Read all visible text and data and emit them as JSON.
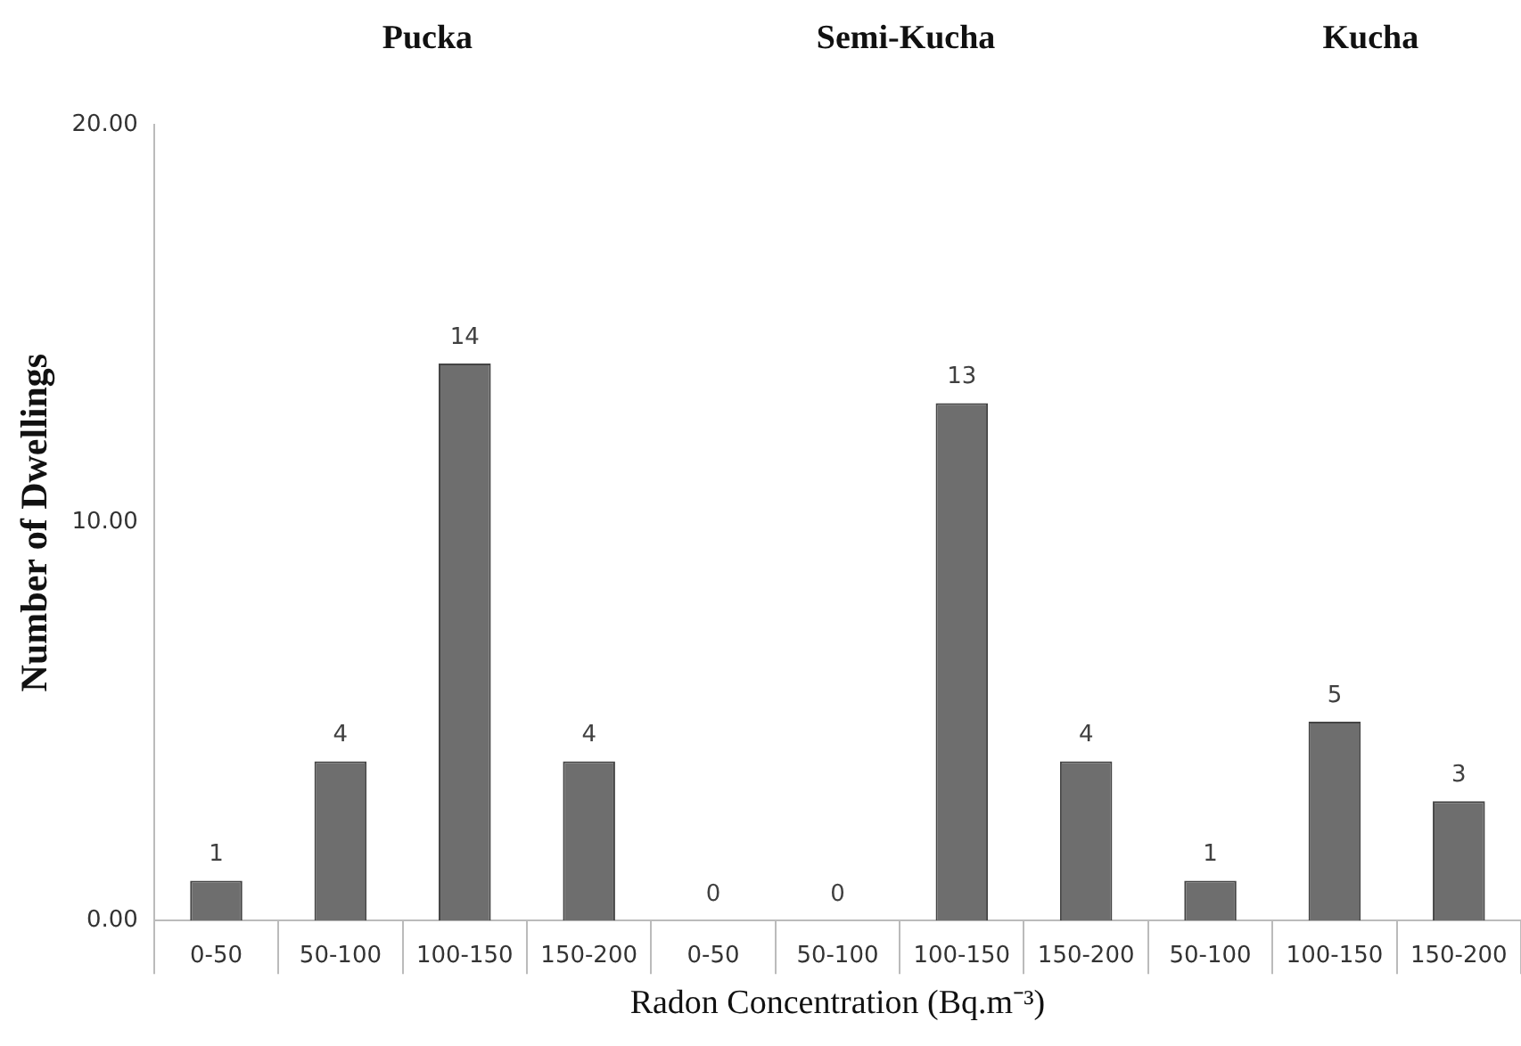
{
  "chart_data": {
    "type": "bar",
    "xlabel": "Radon Concentration (Bq.m⁻³)",
    "ylabel": "Number of Dwellings",
    "categories": [
      "0-50",
      "50-100",
      "100-150",
      "150-200",
      "0-50",
      "50-100",
      "100-150",
      "150-200",
      "50-100",
      "100-150",
      "150-200"
    ],
    "values": [
      1,
      4,
      14,
      4,
      0,
      0,
      13,
      4,
      1,
      5,
      3
    ],
    "color": "#6e6e6e",
    "ylim": [
      0,
      20
    ],
    "yticks": [
      {
        "value": 0,
        "label": "0.00"
      },
      {
        "value": 10,
        "label": "10.00"
      },
      {
        "value": 20,
        "label": "20.00"
      }
    ],
    "data_labels": true,
    "grid": false,
    "legend": false,
    "annotations": [
      "Pucka",
      "Semi-Kucha",
      "Kucha"
    ]
  }
}
